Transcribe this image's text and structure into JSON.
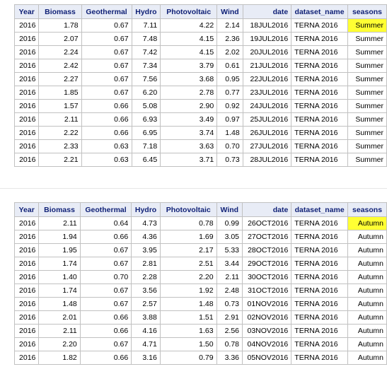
{
  "headers": [
    "Year",
    "Biomass",
    "Geothermal",
    "Hydro",
    "Photovoltaic",
    "Wind",
    "date",
    "dataset_name",
    "seasons"
  ],
  "highlight_color": "#ffff33",
  "tables": [
    {
      "rows": [
        [
          "2016",
          "1.78",
          "0.67",
          "7.11",
          "4.22",
          "2.14",
          "18JUL2016",
          "TERNA 2016",
          "Summer"
        ],
        [
          "2016",
          "2.07",
          "0.67",
          "7.48",
          "4.15",
          "2.36",
          "19JUL2016",
          "TERNA 2016",
          "Summer"
        ],
        [
          "2016",
          "2.24",
          "0.67",
          "7.42",
          "4.15",
          "2.02",
          "20JUL2016",
          "TERNA 2016",
          "Summer"
        ],
        [
          "2016",
          "2.42",
          "0.67",
          "7.34",
          "3.79",
          "0.61",
          "21JUL2016",
          "TERNA 2016",
          "Summer"
        ],
        [
          "2016",
          "2.27",
          "0.67",
          "7.56",
          "3.68",
          "0.95",
          "22JUL2016",
          "TERNA 2016",
          "Summer"
        ],
        [
          "2016",
          "1.85",
          "0.67",
          "6.20",
          "2.78",
          "0.77",
          "23JUL2016",
          "TERNA 2016",
          "Summer"
        ],
        [
          "2016",
          "1.57",
          "0.66",
          "5.08",
          "2.90",
          "0.92",
          "24JUL2016",
          "TERNA 2016",
          "Summer"
        ],
        [
          "2016",
          "2.11",
          "0.66",
          "6.93",
          "3.49",
          "0.97",
          "25JUL2016",
          "TERNA 2016",
          "Summer"
        ],
        [
          "2016",
          "2.22",
          "0.66",
          "6.95",
          "3.74",
          "1.48",
          "26JUL2016",
          "TERNA 2016",
          "Summer"
        ],
        [
          "2016",
          "2.33",
          "0.63",
          "7.18",
          "3.63",
          "0.70",
          "27JUL2016",
          "TERNA 2016",
          "Summer"
        ],
        [
          "2016",
          "2.21",
          "0.63",
          "6.45",
          "3.71",
          "0.73",
          "28JUL2016",
          "TERNA 2016",
          "Summer"
        ]
      ]
    },
    {
      "rows": [
        [
          "2016",
          "2.11",
          "0.64",
          "4.73",
          "0.78",
          "0.99",
          "26OCT2016",
          "TERNA 2016",
          "Autumn"
        ],
        [
          "2016",
          "1.94",
          "0.66",
          "4.36",
          "1.69",
          "3.05",
          "27OCT2016",
          "TERNA 2016",
          "Autumn"
        ],
        [
          "2016",
          "1.95",
          "0.67",
          "3.95",
          "2.17",
          "5.33",
          "28OCT2016",
          "TERNA 2016",
          "Autumn"
        ],
        [
          "2016",
          "1.74",
          "0.67",
          "2.81",
          "2.51",
          "3.44",
          "29OCT2016",
          "TERNA 2016",
          "Autumn"
        ],
        [
          "2016",
          "1.40",
          "0.70",
          "2.28",
          "2.20",
          "2.11",
          "30OCT2016",
          "TERNA 2016",
          "Autumn"
        ],
        [
          "2016",
          "1.74",
          "0.67",
          "3.56",
          "1.92",
          "2.48",
          "31OCT2016",
          "TERNA 2016",
          "Autumn"
        ],
        [
          "2016",
          "1.48",
          "0.67",
          "2.57",
          "1.48",
          "0.73",
          "01NOV2016",
          "TERNA 2016",
          "Autumn"
        ],
        [
          "2016",
          "2.01",
          "0.66",
          "3.88",
          "1.51",
          "2.91",
          "02NOV2016",
          "TERNA 2016",
          "Autumn"
        ],
        [
          "2016",
          "2.11",
          "0.66",
          "4.16",
          "1.63",
          "2.56",
          "03NOV2016",
          "TERNA 2016",
          "Autumn"
        ],
        [
          "2016",
          "2.20",
          "0.67",
          "4.71",
          "1.50",
          "0.78",
          "04NOV2016",
          "TERNA 2016",
          "Autumn"
        ],
        [
          "2016",
          "1.82",
          "0.66",
          "3.16",
          "0.79",
          "3.36",
          "05NOV2016",
          "TERNA 2016",
          "Autumn"
        ]
      ]
    }
  ]
}
